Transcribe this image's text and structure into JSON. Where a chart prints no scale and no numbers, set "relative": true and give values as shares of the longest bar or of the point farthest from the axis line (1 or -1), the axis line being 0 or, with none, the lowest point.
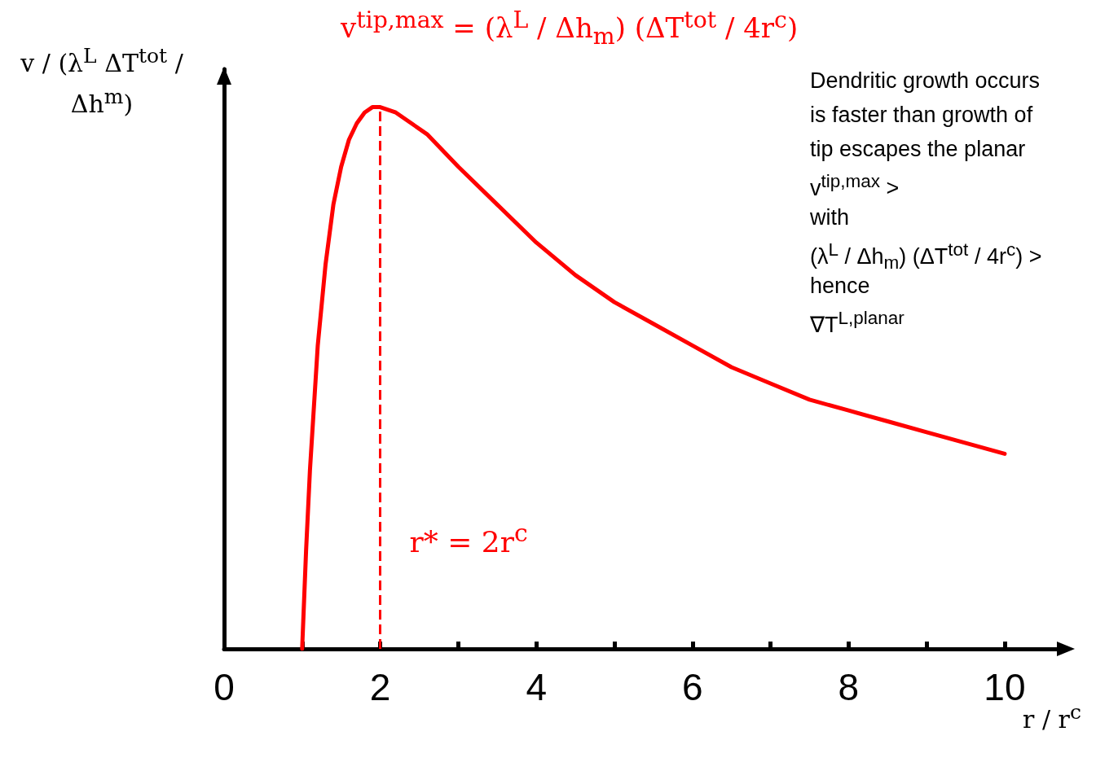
{
  "chart_data": {
    "type": "line",
    "relative": true,
    "xlabel": "r / r$^{c}$",
    "ylabel": "v / (λ$^{L}$ ΔT$^{tot}$ / Δh$^{m}$)",
    "x": [
      1,
      1.05,
      1.1,
      1.2,
      1.3,
      1.4,
      1.5,
      1.6,
      1.7,
      1.8,
      1.9,
      2,
      2.2,
      2.4,
      2.6,
      2.8,
      3,
      3.5,
      4,
      4.5,
      5,
      5.5,
      6,
      6.5,
      7,
      7.5,
      8,
      8.5,
      9,
      9.5,
      10
    ],
    "series": [
      {
        "color": "#ff0000",
        "values": [
          0,
          0.18,
          0.33,
          0.56,
          0.71,
          0.82,
          0.89,
          0.94,
          0.97,
          0.99,
          1.0,
          1,
          0.99,
          0.97,
          0.95,
          0.92,
          0.89,
          0.82,
          0.75,
          0.69,
          0.64,
          0.6,
          0.56,
          0.52,
          0.49,
          0.46,
          0.44,
          0.42,
          0.4,
          0.38,
          0.36
        ]
      }
    ],
    "xlim": [
      0,
      10.7
    ],
    "xticks": [
      0,
      {
        "value": 1,
        "label": null
      },
      2,
      {
        "value": 3,
        "label": null
      },
      4,
      {
        "value": 5,
        "label": null
      },
      6,
      {
        "value": 7,
        "label": null
      },
      8,
      {
        "value": 9,
        "label": null
      },
      10
    ],
    "marker": "none",
    "line_style": "solid",
    "grid": false,
    "title": "v$^{tip,max}$ = (λ$^{L}$ / Δh$_{m}$) (ΔT$^{tot}$ / 4r$^{c}$)",
    "ref_lines": [
      {
        "axis": "x",
        "value": 2,
        "label": "r* = 2r$^{c}$",
        "color": "#ff0000",
        "line_style": "dashed"
      }
    ],
    "annotations": [
      "Dendritic growth occurs",
      "is faster than growth of",
      "tip escapes the planar",
      "v$^{tip,max}$ >",
      "with",
      "(λ$^{L}$ / Δh$_{m}$) (ΔT$^{tot}$ / 4r$^{c}$) >",
      "hence",
      "∇T$^{L,planar}$"
    ]
  }
}
